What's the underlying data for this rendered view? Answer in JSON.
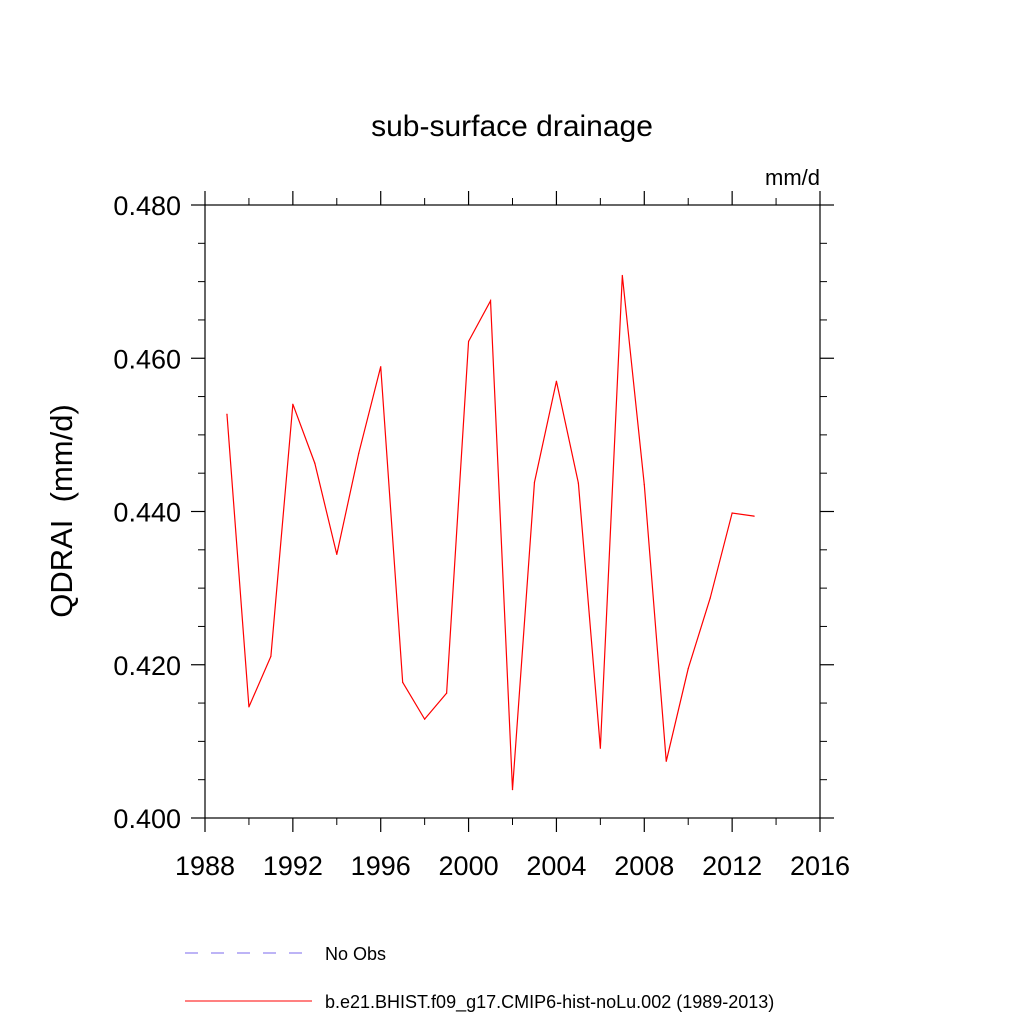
{
  "chart_data": {
    "type": "line",
    "title": "sub-surface drainage",
    "units_label": "mm/d",
    "ylabel": "QDRAI  (mm/d)",
    "xlabel": "",
    "xlim": [
      1988,
      2016
    ],
    "ylim": [
      0.4,
      0.48
    ],
    "x_ticks": [
      1988,
      1992,
      1996,
      2000,
      2004,
      2008,
      2012,
      2016
    ],
    "x_tick_labels": [
      "1988",
      "1992",
      "1996",
      "2000",
      "2004",
      "2008",
      "2012",
      "2016"
    ],
    "y_ticks": [
      0.4,
      0.42,
      0.44,
      0.46,
      0.48
    ],
    "y_tick_labels": [
      "0.400",
      "0.420",
      "0.440",
      "0.460",
      "0.480"
    ],
    "grid": false,
    "legend_position": "bottom",
    "series": [
      {
        "name": "b.e21.BHIST.f09_g17.CMIP6-hist-noLu.002 (1989-2013)",
        "color": "#ff0000",
        "line_style": "solid",
        "x": [
          1989,
          1990,
          1991,
          1992,
          1993,
          1994,
          1995,
          1996,
          1997,
          1998,
          1999,
          2000,
          2001,
          2002,
          2003,
          2004,
          2005,
          2006,
          2007,
          2008,
          2009,
          2010,
          2011,
          2012,
          2013
        ],
        "y": [
          0.4527,
          0.4145,
          0.4211,
          0.454,
          0.4463,
          0.4344,
          0.4476,
          0.4589,
          0.4177,
          0.4129,
          0.4163,
          0.4622,
          0.4675,
          0.4037,
          0.4438,
          0.457,
          0.4437,
          0.4091,
          0.4708,
          0.4435,
          0.4074,
          0.4195,
          0.4287,
          0.4398,
          0.4394
        ]
      }
    ],
    "legend": [
      {
        "label": "No Obs",
        "color": "#7b68ee",
        "line_style": "dashed"
      },
      {
        "label": "b.e21.BHIST.f09_g17.CMIP6-hist-noLu.002 (1989-2013)",
        "color": "#ff0000",
        "line_style": "solid"
      }
    ]
  }
}
